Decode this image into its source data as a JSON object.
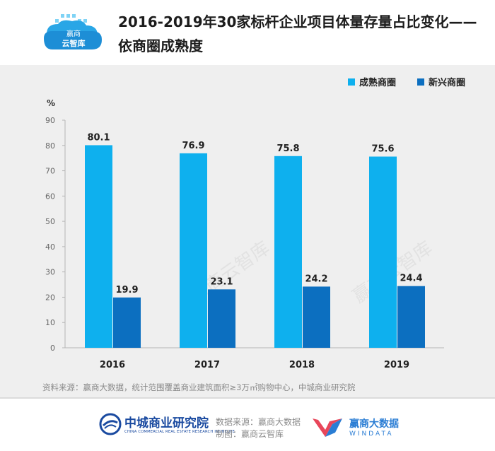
{
  "header": {
    "logo_text_line1": "赢商",
    "logo_text_line2": "云智库",
    "title_line1": "2016-2019年30家标杆企业项目体量存量占比变化——",
    "title_line2": "依商圈成熟度"
  },
  "colors": {
    "mature": "#0eb0ee",
    "emerging": "#0c6fc0",
    "background": "#efefef"
  },
  "chart_data": {
    "type": "bar",
    "title": "2016-2019年30家标杆企业项目体量存量占比变化——依商圈成熟度",
    "xlabel": "",
    "ylabel": "%",
    "ylim": [
      0,
      90
    ],
    "yticks": [
      0,
      10,
      20,
      30,
      40,
      50,
      60,
      70,
      80,
      90
    ],
    "categories": [
      "2016",
      "2017",
      "2018",
      "2019"
    ],
    "series": [
      {
        "name": "成熟商圈",
        "values": [
          80.1,
          76.9,
          75.8,
          75.6
        ],
        "labels": [
          "80.1",
          "76.9",
          "75.8",
          "75.6"
        ]
      },
      {
        "name": "新兴商圈",
        "values": [
          19.9,
          23.1,
          24.2,
          24.4
        ],
        "labels": [
          "19.9",
          "23.1",
          "24.2",
          "24.4"
        ]
      }
    ],
    "legend_position": "top-right",
    "grid": false
  },
  "source_note": "资料来源：赢商大数据，统计范围覆盖商业建筑面积≥3万㎡购物中心，中城商业研究院",
  "footer": {
    "org_name": "中城商业研究院",
    "org_sub": "CHINA COMMERCIAL REAL ESTATE RESEARCH INSTITUTE",
    "credit_line1": "数据来源：赢商大数据",
    "credit_line2": "制图：赢商云智库",
    "wd_name": "赢商大数据",
    "wd_sub": "WINDATA"
  }
}
